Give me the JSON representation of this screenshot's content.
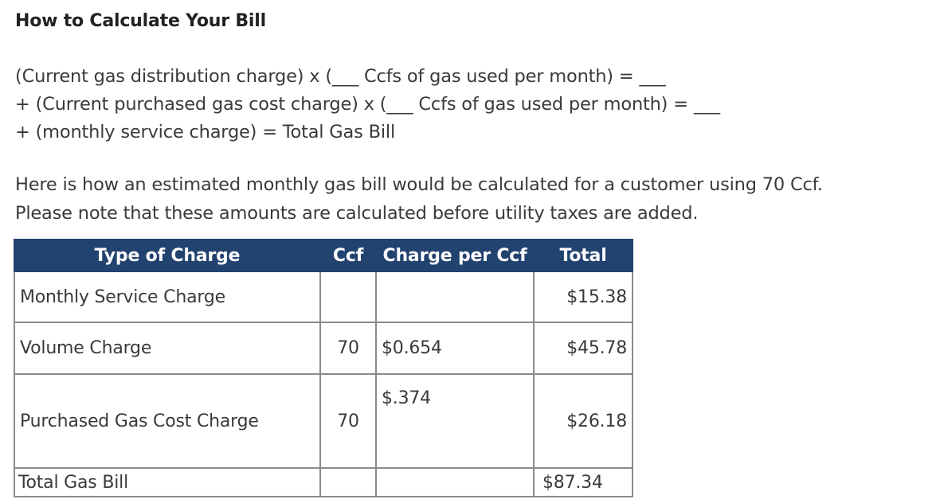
{
  "heading": "How to Calculate Your Bill",
  "formula": {
    "line1": "(Current gas distribution charge) x (___ Ccfs of gas used per month) = ___",
    "line2": "+ (Current purchased gas cost charge) x (___ Ccfs of gas used per month) = ___",
    "line3": "+ (monthly service charge) = Total Gas Bill"
  },
  "intro": {
    "line1": "Here is how an estimated monthly gas bill would be calculated for a customer using 70 Ccf.",
    "line2": "Please note that these amounts are calculated before utility taxes are added."
  },
  "table": {
    "headers": {
      "type": "Type of Charge",
      "ccf": "Ccf",
      "rate": "Charge per Ccf",
      "total": "Total"
    },
    "rows": [
      {
        "type": "Monthly Service Charge",
        "ccf": "",
        "rate": "",
        "total": "$15.38"
      },
      {
        "type": "Volume Charge",
        "ccf": "70",
        "rate": "$0.654",
        "total": "$45.78"
      },
      {
        "type": "Purchased Gas Cost Charge",
        "ccf": "70",
        "rate": "$.374",
        "total": "$26.18"
      },
      {
        "type": "Total Gas Bill",
        "ccf": "",
        "rate": "",
        "total": "$87.34"
      }
    ]
  },
  "colors": {
    "header_background": "#22426f",
    "header_text": "#ffffff",
    "body_text": "#3a3a3a",
    "border": "#8a8a8a"
  }
}
